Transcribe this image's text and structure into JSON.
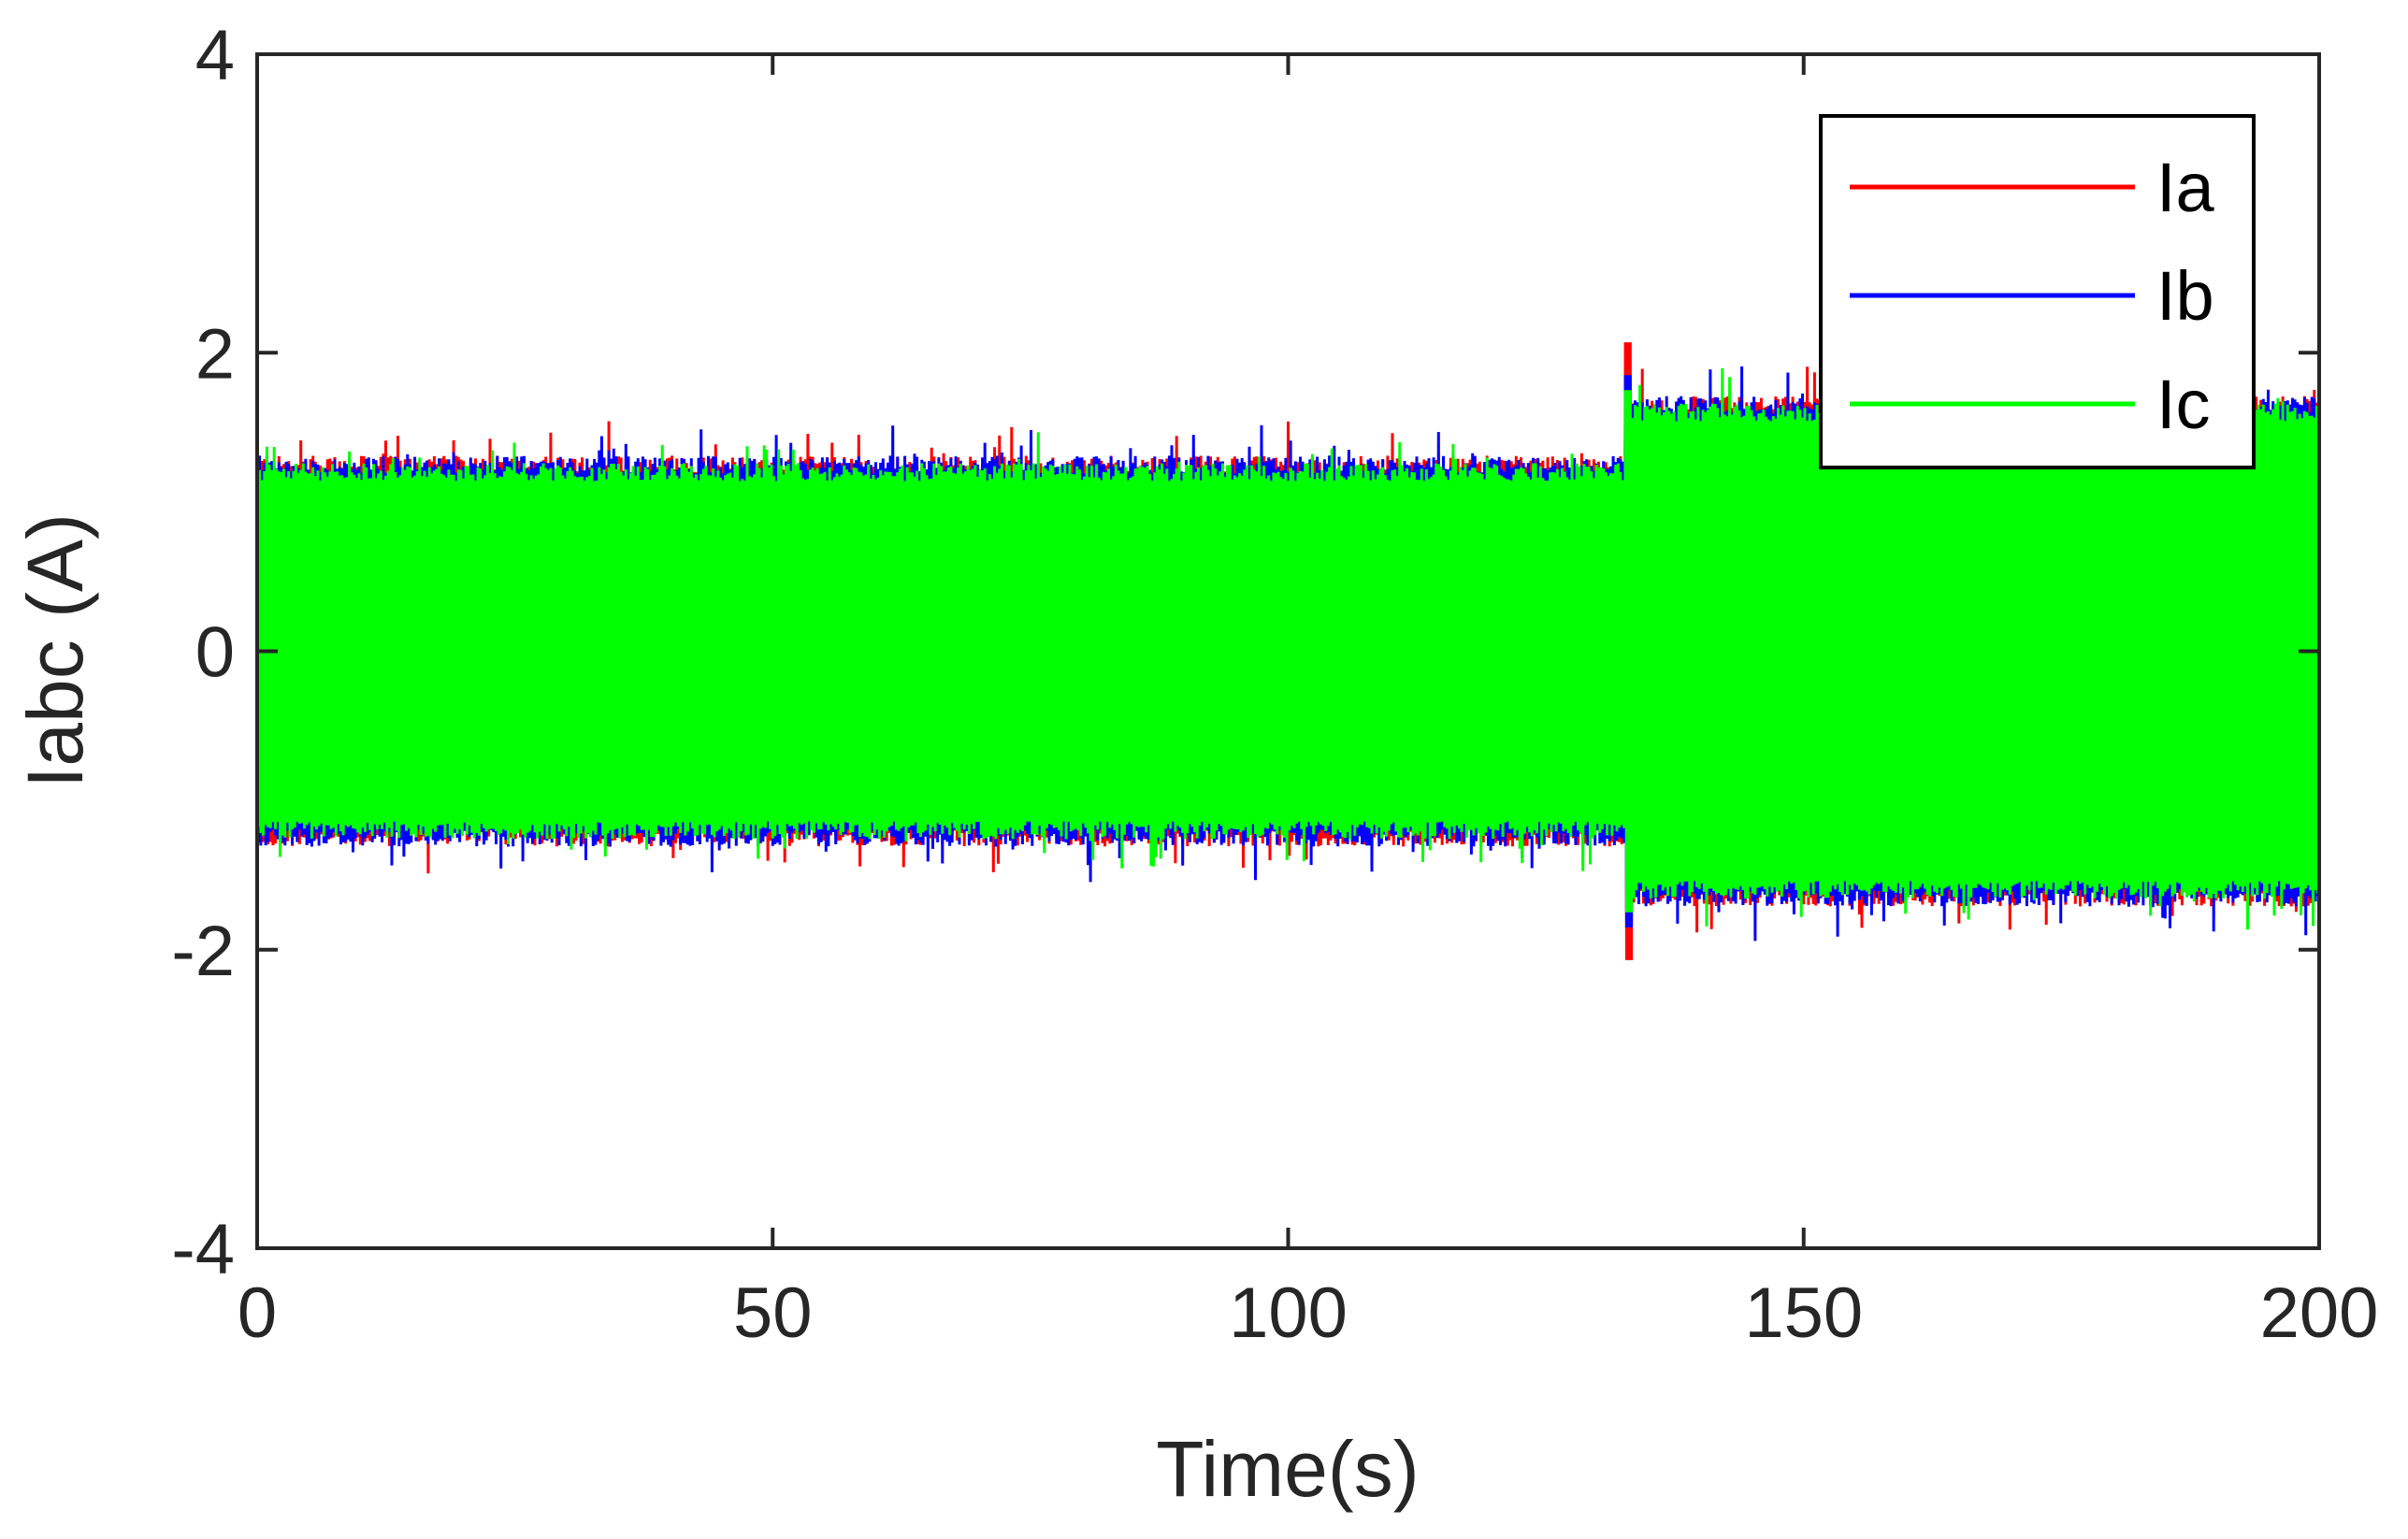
{
  "chart_data": {
    "type": "line",
    "title": "",
    "xlabel": "Time(s)",
    "ylabel": "Iabc (A)",
    "xlim": [
      0,
      200
    ],
    "ylim": [
      -4,
      4
    ],
    "xticks": [
      0,
      50,
      100,
      150,
      200
    ],
    "xtick_labels": [
      "0",
      "50",
      "100",
      "150",
      "200"
    ],
    "yticks": [
      -4,
      -2,
      0,
      2,
      4
    ],
    "ytick_labels": [
      "-4",
      "-2",
      "0",
      "2",
      "4"
    ],
    "grid": false,
    "legend_position": "top-right",
    "step_time": 133,
    "series": [
      {
        "name": "Ia",
        "color": "#ff0000",
        "amplitude_before": 1.25,
        "amplitude_after": 1.65,
        "peak_max": 2.07,
        "peak_min": -1.9
      },
      {
        "name": "Ib",
        "color": "#0000ff",
        "amplitude_before": 1.25,
        "amplitude_after": 1.65,
        "peak_max": 1.85,
        "peak_min": -1.95
      },
      {
        "name": "Ic",
        "color": "#00ff00",
        "amplitude_before": 1.2,
        "amplitude_after": 1.6,
        "peak_max": 1.75,
        "peak_min": -1.9
      }
    ]
  }
}
